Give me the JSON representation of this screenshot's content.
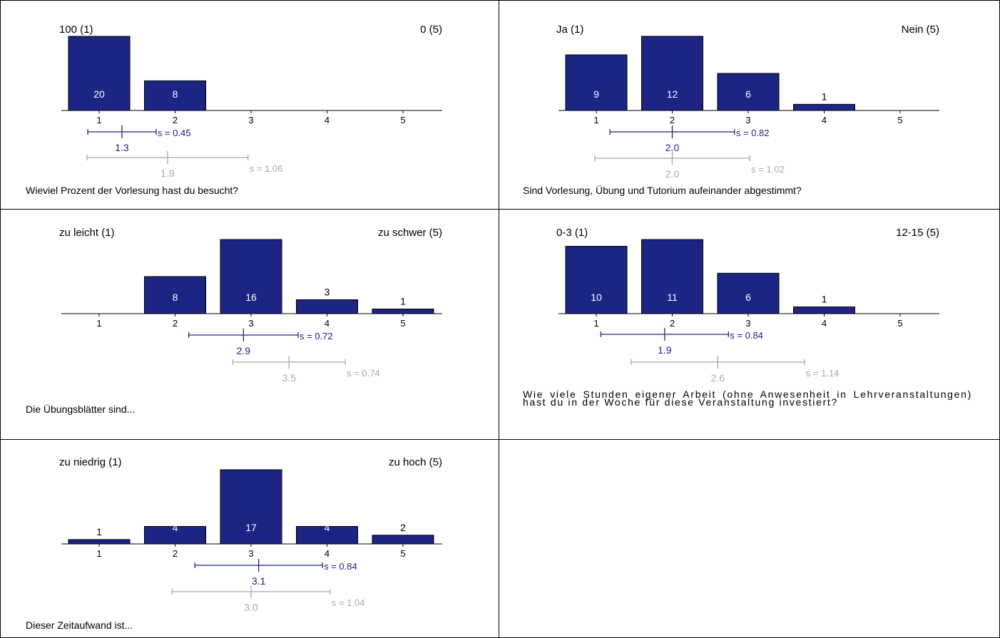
{
  "colors": {
    "bar": "#1c2484",
    "bar_border": "#000000",
    "mean_line": "#1c2484",
    "ref_line": "#a8a8a8",
    "bar_label": "#ffffff",
    "axis": "#000000"
  },
  "chart_data": [
    {
      "type": "bar",
      "question": "Wieviel Prozent der Vorlesung hast du besucht?",
      "left_label": "100 (1)",
      "right_label": "0 (5)",
      "categories": [
        "1",
        "2",
        "3",
        "4",
        "5"
      ],
      "values": [
        20,
        8,
        0,
        0,
        0
      ],
      "mean": {
        "value": "1.3",
        "sd": "s = 0.45"
      },
      "reference": {
        "value": "1.9",
        "sd": "s = 1.06"
      }
    },
    {
      "type": "bar",
      "question": "Sind Vorlesung, Übung und Tutorium aufeinander abgestimmt?",
      "left_label": "Ja (1)",
      "right_label": "Nein (5)",
      "categories": [
        "1",
        "2",
        "3",
        "4",
        "5"
      ],
      "values": [
        9,
        12,
        6,
        1,
        0
      ],
      "mean": {
        "value": "2.0",
        "sd": "s = 0.82"
      },
      "reference": {
        "value": "2.0",
        "sd": "s = 1.02"
      }
    },
    {
      "type": "bar",
      "question": "Die Übungsblätter sind...",
      "left_label": "zu leicht (1)",
      "right_label": "zu schwer (5)",
      "categories": [
        "1",
        "2",
        "3",
        "4",
        "5"
      ],
      "values": [
        0,
        8,
        16,
        3,
        1
      ],
      "mean": {
        "value": "2.9",
        "sd": "s = 0.72"
      },
      "reference": {
        "value": "3.5",
        "sd": "s = 0.74"
      }
    },
    {
      "type": "bar",
      "question": "Wie viele Stunden eigener Arbeit (ohne Anwesenheit in Lehrveranstaltungen) hast du in der Woche für diese Veranstaltung investiert?",
      "left_label": "0-3 (1)",
      "right_label": "12-15 (5)",
      "categories": [
        "1",
        "2",
        "3",
        "4",
        "5"
      ],
      "values": [
        10,
        11,
        6,
        1,
        0
      ],
      "mean": {
        "value": "1.9",
        "sd": "s = 0.84"
      },
      "reference": {
        "value": "2.6",
        "sd": "s = 1.14"
      }
    },
    {
      "type": "bar",
      "question": "Dieser Zeitaufwand ist...",
      "left_label": "zu niedrig (1)",
      "right_label": "zu hoch (5)",
      "categories": [
        "1",
        "2",
        "3",
        "4",
        "5"
      ],
      "values": [
        1,
        4,
        17,
        4,
        2
      ],
      "mean": {
        "value": "3.1",
        "sd": "s = 0.84"
      },
      "reference": {
        "value": "3.0",
        "sd": "s = 1.04"
      }
    }
  ]
}
